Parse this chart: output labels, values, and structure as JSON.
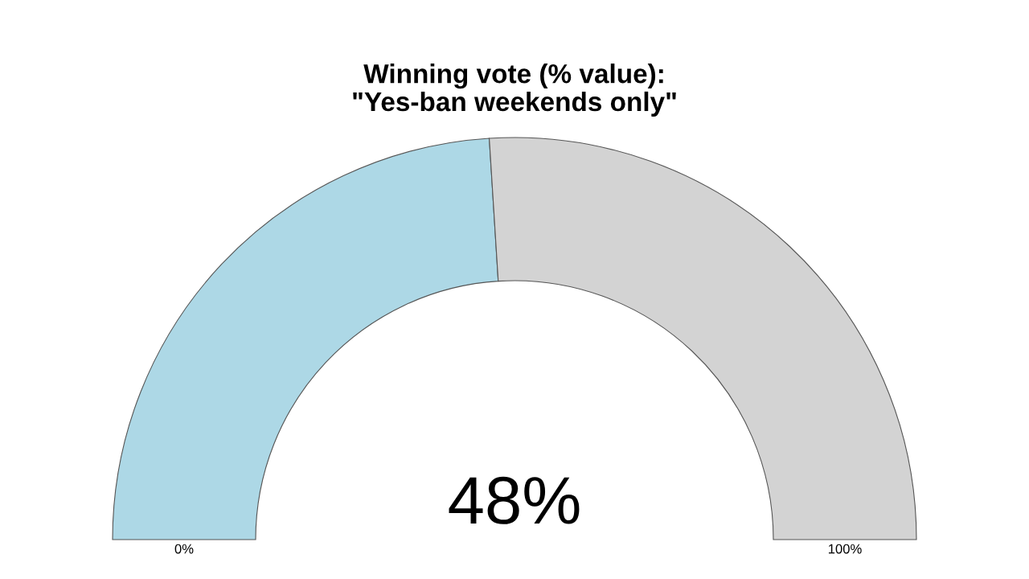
{
  "chart_data": {
    "type": "donut",
    "title": "Winning vote (% value):\n\"Yes-ban weekends only\"",
    "categories": [
      null,
      null
    ],
    "values": [
      48,
      52
    ],
    "colors": [
      "#add8e6",
      "#d3d3d3"
    ],
    "value_labels": [
      "48%",
      null
    ],
    "annotations": [
      "0%",
      "100%"
    ]
  }
}
